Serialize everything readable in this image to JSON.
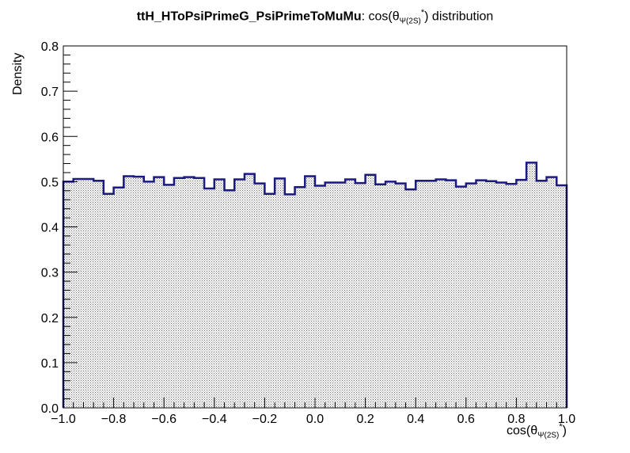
{
  "chart_data": {
    "type": "bar",
    "title_main": "ttH_HToPsiPrimeG_PsiPrimeToMuMu",
    "title_suffix_pre": ": cos(θ",
    "title_sub": "Ψ(2S)",
    "title_sup": "*",
    "title_suffix_post": ") distribution",
    "xlabel_pre": "cos(θ",
    "xlabel_sub": "Ψ(2S)",
    "xlabel_sup": "*",
    "xlabel_post": ")",
    "ylabel": "Density",
    "xlim": [
      -1.0,
      1.0
    ],
    "ylim": [
      0.0,
      0.8
    ],
    "x_ticks": [
      "−1.0",
      "−0.8",
      "−0.6",
      "−0.4",
      "−0.2",
      "0.0",
      "0.2",
      "0.4",
      "0.6",
      "0.8",
      "1.0"
    ],
    "y_ticks": [
      "0.0",
      "0.1",
      "0.2",
      "0.3",
      "0.4",
      "0.5",
      "0.6",
      "0.7",
      "0.8"
    ],
    "bin_width": 0.04,
    "values": [
      0.5,
      0.506,
      0.506,
      0.502,
      0.473,
      0.487,
      0.512,
      0.511,
      0.5,
      0.51,
      0.493,
      0.508,
      0.51,
      0.508,
      0.485,
      0.505,
      0.481,
      0.505,
      0.517,
      0.496,
      0.473,
      0.507,
      0.472,
      0.488,
      0.512,
      0.491,
      0.498,
      0.498,
      0.505,
      0.497,
      0.515,
      0.494,
      0.5,
      0.496,
      0.483,
      0.502,
      0.502,
      0.505,
      0.503,
      0.489,
      0.496,
      0.503,
      0.501,
      0.498,
      0.495,
      0.504,
      0.542,
      0.502,
      0.51,
      0.492
    ],
    "line_color": "#1a1a80",
    "fill_color": "#dcdcdc"
  }
}
